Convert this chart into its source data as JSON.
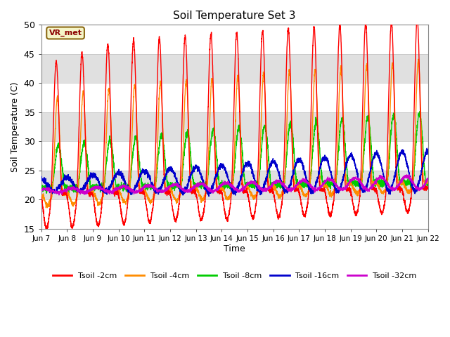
{
  "title": "Soil Temperature Set 3",
  "xlabel": "Time",
  "ylabel": "Soil Temperature (C)",
  "ylim": [
    15,
    50
  ],
  "xlim": [
    0,
    360
  ],
  "background_color": "#ffffff",
  "plot_bg_color": "#ffffff",
  "band_colors": [
    "#ffffff",
    "#e0e0e0"
  ],
  "band_edges": [
    15,
    20,
    25,
    30,
    35,
    40,
    45,
    50
  ],
  "annotation_text": "VR_met",
  "annotation_bg": "#f5f5c8",
  "annotation_border": "#8b6914",
  "series": {
    "Tsoil -2cm": {
      "color": "#ff0000",
      "lw": 1.0
    },
    "Tsoil -4cm": {
      "color": "#ff8c00",
      "lw": 1.0
    },
    "Tsoil -8cm": {
      "color": "#00cc00",
      "lw": 1.0
    },
    "Tsoil -16cm": {
      "color": "#0000cc",
      "lw": 1.0
    },
    "Tsoil -32cm": {
      "color": "#cc00cc",
      "lw": 1.0
    }
  },
  "xtick_labels": [
    "Jun 7",
    "Jun 8",
    "Jun 9",
    "Jun 10",
    "Jun 11",
    "Jun 12",
    "Jun 13",
    "Jun 14",
    "Jun 15",
    "Jun 16",
    "Jun 17",
    "Jun 18",
    "Jun 19",
    "Jun 20",
    "Jun 21",
    "Jun 22"
  ],
  "xtick_positions": [
    0,
    24,
    48,
    72,
    96,
    120,
    144,
    168,
    192,
    216,
    240,
    264,
    288,
    312,
    336,
    360
  ],
  "ytick_labels": [
    "15",
    "20",
    "25",
    "30",
    "35",
    "40",
    "45",
    "50"
  ],
  "ytick_values": [
    15,
    20,
    25,
    30,
    35,
    40,
    45,
    50
  ]
}
